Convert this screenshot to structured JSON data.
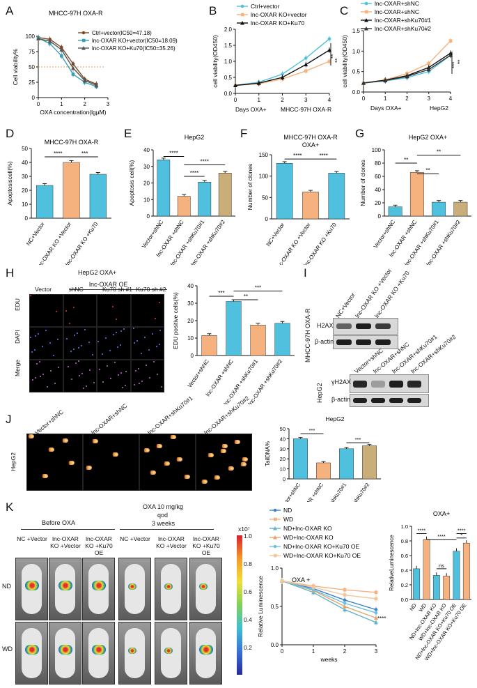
{
  "panels": {
    "A": {
      "label": "A",
      "title": "MHCC-97H OXA-R",
      "ylabel": "Cell viability%",
      "xlabel": "OXA concentration(lgμM)",
      "legend": [
        "Ctrl+vector(IC50=47.18)",
        "lnc-OXAR KO+vector(IC50=18.09)",
        "lnc-OXAR KO+Ku70(IC50=35.26)"
      ],
      "yticks": [
        "0",
        "25",
        "50",
        "75",
        "100"
      ],
      "xticks": [
        "0",
        "1",
        "2",
        "3"
      ]
    },
    "B": {
      "label": "B",
      "ylabel": "cell viability(OD450)",
      "xlabel": "Days OXA+",
      "xsub": "MHCC-97H OXA-R",
      "legend": [
        "Ctrl+vector",
        "lnc-OXAR KO+vector",
        "lnc-OXAR KO+Ku70"
      ],
      "yticks": [
        "0.0",
        "0.5",
        "1.0",
        "1.5",
        "2.0"
      ],
      "xticks": [
        "0",
        "1",
        "2",
        "3",
        "4"
      ],
      "sig": [
        "**",
        "**"
      ]
    },
    "C": {
      "label": "C",
      "ylabel": "cell viability(OD450)",
      "xlabel": "Days OXA+",
      "xsub": "HepG2",
      "legend": [
        "lnc-OXAR+shNC",
        "lnc-OXAR+shNC",
        "lnc-OXAR+shKu70#1",
        "lnc-OXAR+shKu70#2"
      ],
      "yticks": [
        "0.0",
        "0.5",
        "1.0",
        "1.5"
      ],
      "xticks": [
        "0",
        "1",
        "2",
        "3",
        "4"
      ],
      "sig": [
        "***",
        "**"
      ]
    },
    "D": {
      "label": "D",
      "title": "MHCC-97H OXA-R",
      "ylabel": "Apoptosiscell(%)",
      "yticks": [
        "0",
        "10",
        "20",
        "30",
        "40",
        "50"
      ],
      "cats": [
        "NC+Vector",
        "lnc-OXAR KO +Vector",
        "lnc-OXAR KO +Ku70"
      ],
      "sig": [
        "****",
        "***"
      ]
    },
    "E": {
      "label": "E",
      "title": "HepG2",
      "ylabel": "Apoptosis cell(%)",
      "yticks": [
        "0",
        "10",
        "20",
        "30",
        "40"
      ],
      "cats": [
        "Vector+shNC",
        "lnc-OXAR +shNC",
        "lnc-OXAR +shKu70#1",
        "lnc-OXAR +shKu70#2"
      ],
      "sig": [
        "****",
        "****",
        "****"
      ]
    },
    "F": {
      "label": "F",
      "title": "MHCC-97H OXA-R",
      "subtitle": "OXA+",
      "ylabel": "Number of clones",
      "yticks": [
        "0",
        "50",
        "100",
        "150"
      ],
      "cats": [
        "NC+Vector",
        "lnc-OXAR KO +Vector",
        "lnc-OXAR KO +Ku70"
      ],
      "sig": [
        "****",
        "****"
      ]
    },
    "G": {
      "label": "G",
      "title": "HepG2 OXA+",
      "ylabel": "Number of clones",
      "yticks": [
        "0",
        "20",
        "40",
        "60",
        "80",
        "100"
      ],
      "cats": [
        "Vector+shNC",
        "lnc-OXAR +shNC",
        "lnc-OXAR +shKu70#1",
        "lnc-OXAR +shKu70#2"
      ],
      "sig": [
        "**",
        "**",
        "**"
      ]
    },
    "H": {
      "label": "H",
      "title": "HepG2 OXA+",
      "group": "lnc-OXAR OE",
      "cols": [
        "Vector",
        "shNC",
        "Ku70 sh #1",
        "Ku70 sh #2"
      ],
      "rows": [
        "EDU",
        "DAPI",
        "Merge"
      ],
      "ylabel": "EDU positive cells(%)",
      "yticks": [
        "0",
        "10",
        "20",
        "30",
        "40"
      ],
      "cats": [
        "Vector+shNC",
        "lnc-OXAR +shNC",
        "lnc-OXAR +shKu70#1",
        "lnc-OXAR +shKu70#2"
      ],
      "sig": [
        "***",
        "**",
        "***"
      ]
    },
    "I": {
      "label": "I",
      "lanes1": [
        "NC+Vector",
        "lnc-OXAR KO +Vector",
        "lnc-OXAR KO +Ku70"
      ],
      "cell1": "MHCC-97H OXA-R",
      "bands1": [
        "H2AX",
        "β-actin"
      ],
      "lanes2": [
        "Vector+shNC",
        "lnc-OXAR+shNC",
        "lnc-OXAR+shKu70#1",
        "lnc-OXAR+shKu70#2"
      ],
      "cell2": "HepG2",
      "bands2": [
        "γH2AX",
        "β-actin"
      ]
    },
    "J": {
      "label": "J",
      "cols": [
        "Vector+shNC",
        "lnc-OXAR+shNC",
        "lnc-OXAR+shKu70#1",
        "lnc-OXAR+shKu70#2"
      ],
      "row": "HepG2",
      "title": "HepG2",
      "ylabel": "TailDNA%",
      "yticks": [
        "0",
        "10",
        "20",
        "30",
        "40",
        "50"
      ],
      "cats": [
        "Vector+shNC",
        "lnc-OXAR +shNC",
        "lnc-OXAR +shKu70#1",
        "lnc-OXAR +shKu70#2"
      ],
      "sig": [
        "***",
        "***"
      ]
    },
    "K": {
      "label": "K",
      "before": "Before OXA",
      "treat1": "OXA 10 mg/kg",
      "treat2": "qod",
      "treat3": "3 weeks",
      "mice_cols": [
        "NC +Vector",
        "lnc-OXAR KO +Vector",
        "lnc-OXAR KO +Ku70 OE",
        "NC +Vector",
        "lnc-OXAR KO +Vector",
        "lnc-OXAR KO +Ku70 OE"
      ],
      "rows": [
        "ND",
        "WD"
      ],
      "cbar_exp": "x10⁷",
      "cbar_ticks": [
        "1.0",
        "0.8",
        "0.6",
        "0.4",
        "0.2"
      ],
      "legend": [
        "ND",
        "WD",
        "ND+lnc-OXAR KO",
        "WD+lnc-OXAR KO",
        "ND+lnc-OXAR KO+Ku70 OE",
        "WD+lnc-OXAR KO+Ku70 OE"
      ],
      "lum_ylabel": "Relative Luminescence",
      "lum_xlabel": "weeks",
      "lum_annot": "OXA +",
      "lum_sig": "****",
      "lum_yticks": [
        "0.0",
        "0.5",
        "1.0"
      ],
      "lum_xticks": [
        "0",
        "1",
        "2",
        "3"
      ],
      "bar_title": "OXA+",
      "bar_ylabel": "RelativeLuminescence",
      "bar_yticks": [
        "0.0",
        "0.2",
        "0.4",
        "0.6",
        "0.8",
        "1.0"
      ],
      "bar_cats": [
        "ND",
        "WD",
        "ND+lnc-OXAR KO",
        "WD+lnc-OXAR KO",
        "ND+lnc-OXAR KO+Ku70 OE",
        "WD+lnc-OXAR KO+Ku70 OE"
      ],
      "bar_sig": [
        "****",
        "ns",
        "****",
        "****",
        "*"
      ]
    }
  },
  "colors": {
    "cyan": "#4fc0de",
    "orange": "#f6b27e",
    "black": "#222222",
    "tan": "#c9ae7a",
    "blue": "#3d7fd0",
    "lightorange": "#f3c49a"
  },
  "chart_data": [
    {
      "type": "line",
      "panel": "A",
      "x": [
        0,
        0.5,
        1,
        1.5,
        2,
        2.5
      ],
      "series": [
        {
          "name": "Ctrl+vector(IC50=47.18)",
          "values": [
            98,
            95,
            82,
            55,
            30,
            22
          ]
        },
        {
          "name": "lnc-OXAR KO+vector(IC50=18.09)",
          "values": [
            97,
            88,
            68,
            38,
            25,
            18
          ]
        },
        {
          "name": "lnc-OXAR KO+Ku70(IC50=35.26)",
          "values": [
            96,
            92,
            78,
            48,
            28,
            20
          ]
        }
      ],
      "ylim": [
        0,
        100
      ]
    },
    {
      "type": "line",
      "panel": "B",
      "x": [
        0,
        1,
        2,
        3,
        4
      ],
      "series": [
        {
          "name": "Ctrl+vector",
          "values": [
            0.25,
            0.35,
            0.6,
            1.1,
            1.7
          ]
        },
        {
          "name": "lnc-OXAR KO+vector",
          "values": [
            0.25,
            0.3,
            0.45,
            0.7,
            1.0
          ]
        },
        {
          "name": "lnc-OXAR KO+Ku70",
          "values": [
            0.25,
            0.32,
            0.5,
            0.9,
            1.35
          ]
        }
      ],
      "ylim": [
        0,
        2.0
      ]
    },
    {
      "type": "line",
      "panel": "C",
      "x": [
        0,
        1,
        2,
        3,
        4
      ],
      "series": [
        {
          "name": "lnc-OXAR+shNC",
          "values": [
            0.22,
            0.27,
            0.35,
            0.5,
            0.9
          ]
        },
        {
          "name": "lnc-OXAR+shNC",
          "values": [
            0.22,
            0.3,
            0.45,
            0.7,
            1.25
          ]
        },
        {
          "name": "lnc-OXAR+shKu70#1",
          "values": [
            0.22,
            0.29,
            0.4,
            0.6,
            0.95
          ]
        },
        {
          "name": "lnc-OXAR+shKu70#2",
          "values": [
            0.22,
            0.28,
            0.38,
            0.55,
            0.9
          ]
        }
      ],
      "ylim": [
        0,
        1.5
      ]
    },
    {
      "type": "bar",
      "panel": "D",
      "categories": [
        "NC+Vector",
        "lnc-OXAR KO +Vector",
        "lnc-OXAR KO +Ku70"
      ],
      "values": [
        23.5,
        40,
        31.5
      ],
      "ylim": [
        0,
        50
      ]
    },
    {
      "type": "bar",
      "panel": "E",
      "categories": [
        "Vector+shNC",
        "lnc-OXAR +shNC",
        "lnc-OXAR +shKu70#1",
        "lnc-OXAR +shKu70#2"
      ],
      "values": [
        34,
        12,
        20.5,
        26
      ],
      "ylim": [
        0,
        40
      ]
    },
    {
      "type": "bar",
      "panel": "F",
      "categories": [
        "NC+Vector",
        "lnc-OXAR KO +Vector",
        "lnc-OXAR KO +Ku70"
      ],
      "values": [
        130,
        63,
        107
      ],
      "ylim": [
        0,
        150
      ]
    },
    {
      "type": "bar",
      "panel": "G",
      "categories": [
        "Vector+shNC",
        "lnc-OXAR +shNC",
        "lnc-OXAR +shKu70#1",
        "lnc-OXAR +shKu70#2"
      ],
      "values": [
        14,
        66,
        21,
        21
      ],
      "ylim": [
        0,
        100
      ]
    },
    {
      "type": "bar",
      "panel": "H",
      "categories": [
        "Vector+shNC",
        "lnc-OXAR +shNC",
        "lnc-OXAR +shKu70#1",
        "lnc-OXAR +shKu70#2"
      ],
      "values": [
        11.5,
        31,
        17.5,
        18.5
      ],
      "ylim": [
        0,
        40
      ]
    },
    {
      "type": "bar",
      "panel": "J",
      "categories": [
        "Vector+shNC",
        "lnc-OXAR +shNC",
        "lnc-OXAR +shKu70#1",
        "lnc-OXAR +shKu70#2"
      ],
      "values": [
        40,
        16,
        30,
        33
      ],
      "ylim": [
        0,
        50
      ]
    },
    {
      "type": "line",
      "panel": "K-lum",
      "x": [
        0,
        1,
        2,
        3
      ],
      "series": [
        {
          "name": "ND",
          "values": [
            1.0,
            0.88,
            0.7,
            0.55
          ]
        },
        {
          "name": "WD",
          "values": [
            1.0,
            0.92,
            0.86,
            0.82
          ]
        },
        {
          "name": "ND+lnc-OXAR KO",
          "values": [
            1.0,
            0.82,
            0.55,
            0.35
          ]
        },
        {
          "name": "WD+lnc-OXAR KO",
          "values": [
            1.0,
            0.85,
            0.6,
            0.42
          ]
        },
        {
          "name": "ND+lnc-OXAR KO+Ku70 OE",
          "values": [
            1.0,
            0.86,
            0.65,
            0.5
          ]
        },
        {
          "name": "WD+lnc-OXAR KO+Ku70 OE",
          "values": [
            1.0,
            0.9,
            0.78,
            0.72
          ]
        }
      ],
      "ylim": [
        0,
        1.2
      ]
    },
    {
      "type": "bar",
      "panel": "K-bar",
      "categories": [
        "ND",
        "WD",
        "ND+lnc-OXAR KO",
        "WD+lnc-OXAR KO",
        "ND+lnc-OXAR KO+Ku70 OE",
        "WD+lnc-OXAR KO+Ku70 OE"
      ],
      "values": [
        0.42,
        0.82,
        0.33,
        0.32,
        0.66,
        0.77
      ],
      "ylim": [
        0,
        1.0
      ]
    }
  ]
}
